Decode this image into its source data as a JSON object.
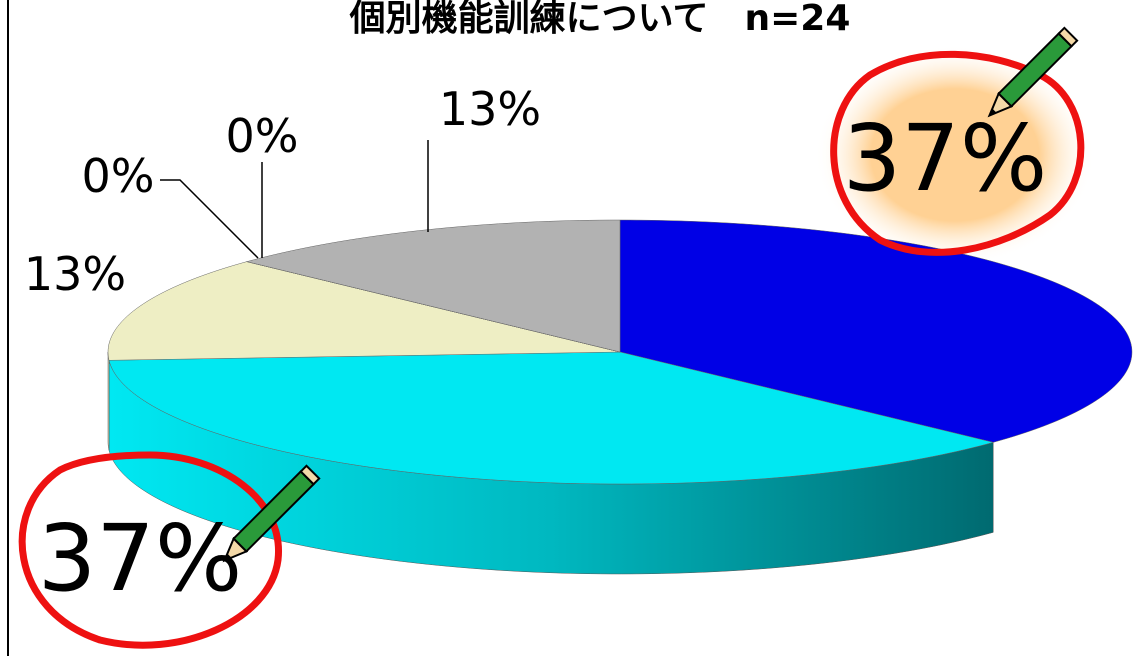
{
  "chart_data": {
    "type": "pie",
    "title": "個別機能訓練について　n=24",
    "values": [
      37,
      37,
      13,
      0,
      0,
      13
    ],
    "value_labels": [
      "37%",
      "37%",
      "13%",
      "0%",
      "0%",
      "13%"
    ],
    "colors": [
      "#0000e6",
      "#00e8f2",
      "#eeeec4",
      "#9999ff",
      "#ff99cc",
      "#b2b2b2"
    ]
  }
}
